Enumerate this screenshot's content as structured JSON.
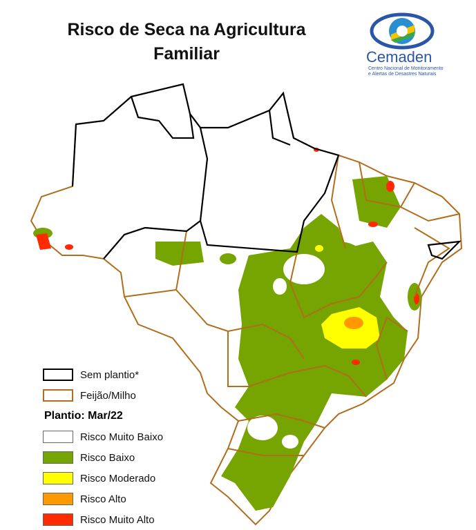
{
  "header": {
    "title": "Risco de Seca na Agricultura Familiar"
  },
  "logo": {
    "name": "Cemaden",
    "subtitle_lines": [
      "Centro Nacional de Monitoramento",
      "e Alertas de Desastres Naturais"
    ]
  },
  "legend": {
    "boundaries": [
      {
        "label": "Sem plantio*",
        "color": "#000000"
      },
      {
        "label": "Feijão/Milho",
        "color": "#b06d1c"
      }
    ],
    "heading": "Plantio: Mar/22",
    "classes": [
      {
        "label": "Risco Muito Baixo",
        "color": "#ffffff"
      },
      {
        "label": "Risco Baixo",
        "color": "#76a400"
      },
      {
        "label": "Risco Moderado",
        "color": "#ffff00"
      },
      {
        "label": "Risco Alto",
        "color": "#ff9900"
      },
      {
        "label": "Risco Muito Alto",
        "color": "#ff2a00"
      }
    ]
  }
}
